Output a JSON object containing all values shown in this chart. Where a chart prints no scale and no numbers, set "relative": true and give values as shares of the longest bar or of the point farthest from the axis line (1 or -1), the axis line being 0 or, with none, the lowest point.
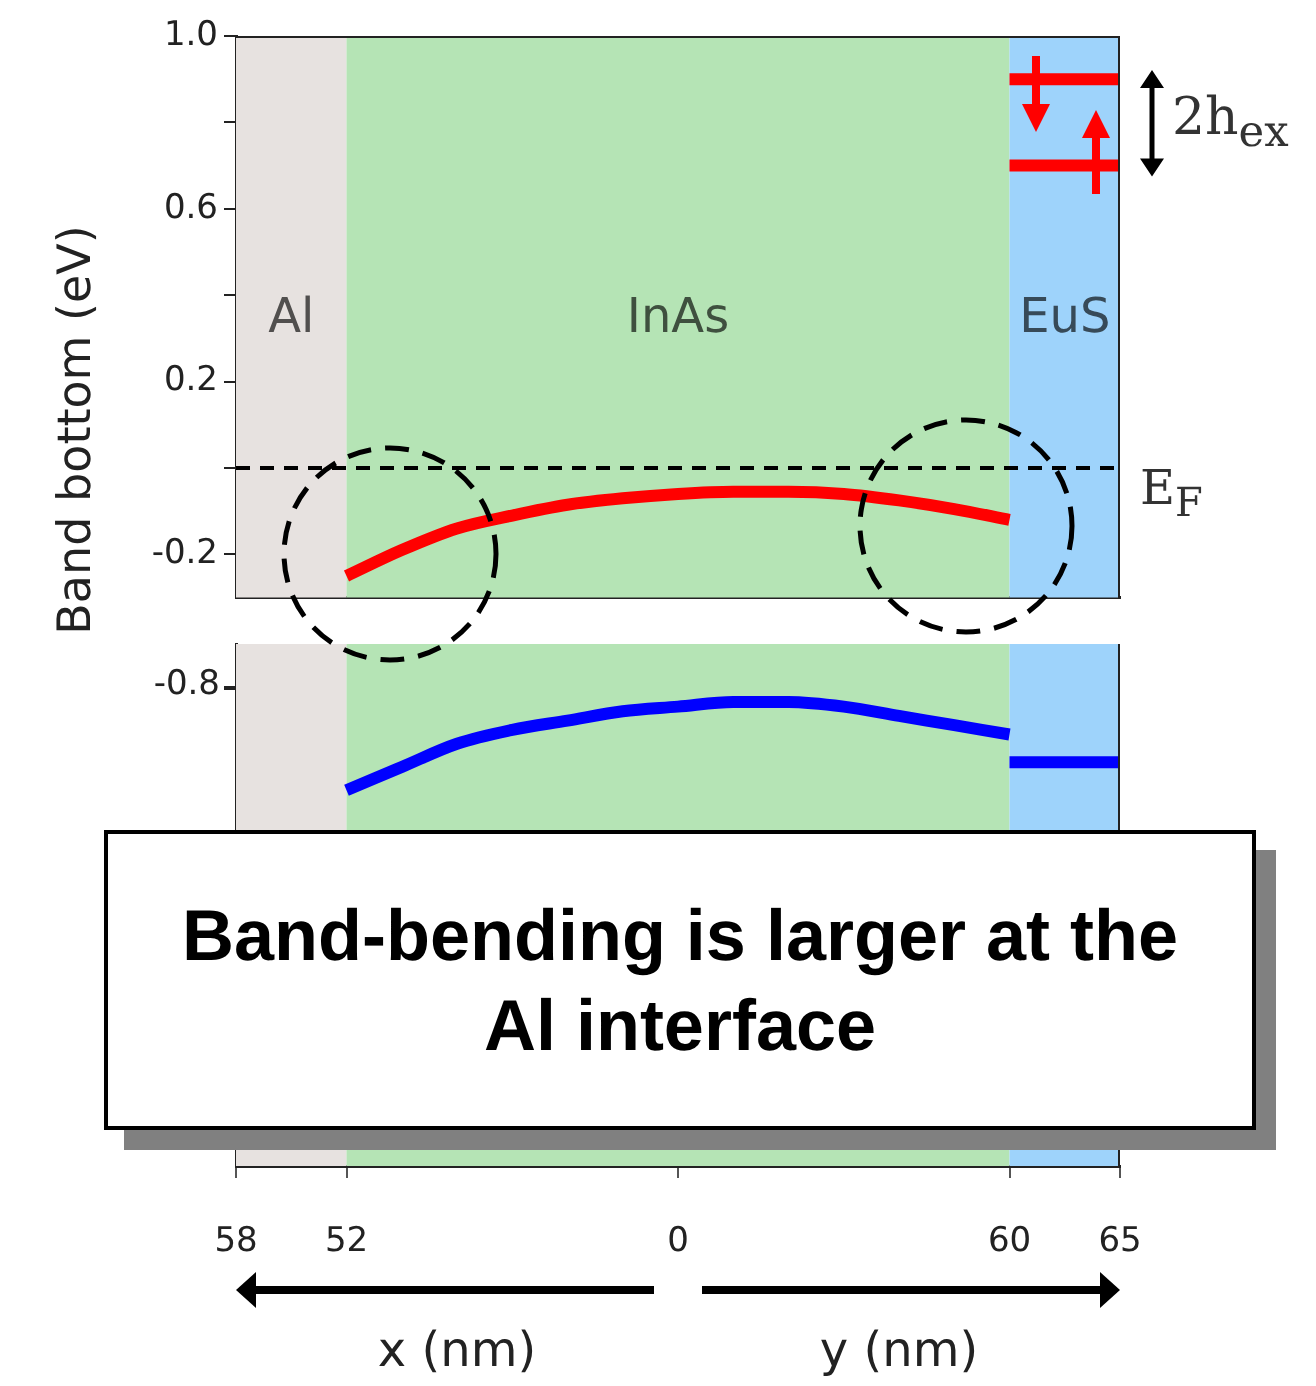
{
  "chart_data": [
    {
      "type": "line",
      "ylabel": "Band bottom (eV)",
      "categories": [
        "58",
        null,
        "52",
        null,
        null,
        null,
        null,
        null,
        "0",
        null,
        null,
        null,
        null,
        null,
        "60",
        null,
        "65"
      ],
      "ylim": [
        -0.3,
        1.0
      ],
      "yticks": [
        {
          "value": 1,
          "label": "1.0"
        },
        {
          "value": 0.8,
          "label": null
        },
        0.6,
        {
          "value": 0.4,
          "label": null
        },
        0.2,
        {
          "value": 0,
          "label": null
        },
        -0.2
      ],
      "tick_labels": "y",
      "grid": false,
      "legend": false,
      "marker": "none",
      "bands": [
        {
          "axis": "x",
          "from": "58",
          "to": "52",
          "label": "Al",
          "color": "#e7e2e0"
        },
        {
          "axis": "x",
          "from": "52",
          "to": "60",
          "label": "InAs",
          "color": "#b5e4b5"
        },
        {
          "axis": "x",
          "from": "60",
          "to": "65",
          "label": "EuS",
          "color": "#9ed3fb"
        }
      ],
      "ref_lines": [
        {
          "axis": "y",
          "value": 0,
          "label": "E$_{F}$",
          "color": "#000000",
          "line_style": "dashed"
        }
      ],
      "annotations": [
        "2h$_{ex}$"
      ],
      "series": [
        {
          "color": "#ff0000",
          "values": [
            null,
            null,
            -0.25,
            -0.19,
            -0.14,
            -0.11,
            -0.085,
            -0.07,
            -0.06,
            -0.055,
            -0.055,
            -0.06,
            -0.075,
            -0.095,
            -0.12,
            null,
            null
          ]
        },
        {
          "color": "#ff0000",
          "values": [
            null,
            null,
            null,
            null,
            null,
            null,
            null,
            null,
            null,
            null,
            null,
            null,
            null,
            null,
            0.9,
            0.9,
            0.9
          ]
        },
        {
          "color": "#ff0000",
          "values": [
            null,
            null,
            null,
            null,
            null,
            null,
            null,
            null,
            null,
            null,
            null,
            null,
            null,
            null,
            0.7,
            0.7,
            0.7
          ]
        }
      ]
    },
    {
      "type": "line",
      "xlabel": "x (nm)",
      "relative": true,
      "categories": [
        "58",
        null,
        "52",
        null,
        null,
        null,
        null,
        null,
        "0",
        null,
        null,
        null,
        null,
        null,
        "60",
        null,
        "65"
      ],
      "grid": false,
      "legend": false,
      "marker": "none",
      "bands": [
        {
          "axis": "x",
          "from": "58",
          "to": "52",
          "color": "#e7e2e0"
        },
        {
          "axis": "x",
          "from": "52",
          "to": "60",
          "color": "#b5e4b5"
        },
        {
          "axis": "x",
          "from": "60",
          "to": "65",
          "color": "#9ed3fb"
        }
      ],
      "annotations": [
        "-0.8",
        "Band-bending is larger at the Al interface",
        "y (nm)"
      ],
      "series": [
        {
          "color": "#0000ff",
          "values": [
            null,
            null,
            0.81,
            0.86,
            0.91,
            0.94,
            0.96,
            0.98,
            0.99,
            1,
            1,
            0.99,
            0.97,
            0.95,
            0.93,
            null,
            null
          ]
        },
        {
          "color": "#0000ff",
          "values": [
            null,
            null,
            null,
            null,
            null,
            null,
            null,
            null,
            null,
            null,
            null,
            null,
            null,
            null,
            0.87,
            0.87,
            0.87
          ]
        }
      ]
    }
  ]
}
